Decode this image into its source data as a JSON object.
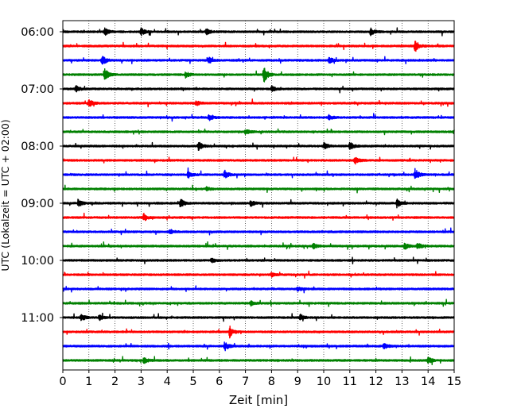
{
  "chart_data": {
    "type": "line",
    "subtype": "helicorder",
    "xlabel": "Zeit  [min]",
    "ylabel": "UTC (Lokalzeit = UTC + 02:00)",
    "xlim": [
      0,
      15
    ],
    "x_ticks": [
      "0",
      "1",
      "2",
      "3",
      "4",
      "5",
      "6",
      "7",
      "8",
      "9",
      "10",
      "11",
      "12",
      "13",
      "14",
      "15"
    ],
    "y_tick_labels": [
      "06:00",
      "07:00",
      "08:00",
      "09:00",
      "10:00",
      "11:00"
    ],
    "trace_minutes_per_line": 15,
    "start_utc": "06:00",
    "grid_x": true,
    "colors": [
      "#000000",
      "#ff0000",
      "#0000ff",
      "#008000"
    ],
    "series": [
      {
        "start": "06:00",
        "color": "#000000",
        "events": [
          {
            "x": 1.6,
            "amp": 1.2
          },
          {
            "x": 3.0,
            "amp": 1.1
          },
          {
            "x": 5.5,
            "amp": 0.8
          },
          {
            "x": 11.8,
            "amp": 1.1
          }
        ]
      },
      {
        "start": "06:15",
        "color": "#ff0000",
        "events": [
          {
            "x": 13.5,
            "amp": 1.9
          }
        ]
      },
      {
        "start": "06:30",
        "color": "#0000ff",
        "events": [
          {
            "x": 1.5,
            "amp": 1.6
          },
          {
            "x": 5.6,
            "amp": 0.9
          },
          {
            "x": 10.2,
            "amp": 1.0
          }
        ]
      },
      {
        "start": "06:45",
        "color": "#008000",
        "events": [
          {
            "x": 1.6,
            "amp": 2.1
          },
          {
            "x": 4.7,
            "amp": 1.0
          },
          {
            "x": 7.7,
            "amp": 2.6
          }
        ]
      },
      {
        "start": "07:00",
        "color": "#000000",
        "events": [
          {
            "x": 0.5,
            "amp": 0.9
          },
          {
            "x": 8.0,
            "amp": 0.9
          }
        ]
      },
      {
        "start": "07:15",
        "color": "#ff0000",
        "events": [
          {
            "x": 1.0,
            "amp": 1.1
          },
          {
            "x": 5.1,
            "amp": 0.8
          }
        ]
      },
      {
        "start": "07:30",
        "color": "#0000ff",
        "events": [
          {
            "x": 5.6,
            "amp": 0.9
          },
          {
            "x": 10.2,
            "amp": 0.7
          }
        ]
      },
      {
        "start": "07:45",
        "color": "#008000",
        "events": [
          {
            "x": 7.0,
            "amp": 0.8
          },
          {
            "x": 15.0,
            "amp": 0.7
          }
        ]
      },
      {
        "start": "08:00",
        "color": "#000000",
        "events": [
          {
            "x": 5.2,
            "amp": 1.4
          },
          {
            "x": 10.0,
            "amp": 1.0
          },
          {
            "x": 11.0,
            "amp": 1.2
          }
        ]
      },
      {
        "start": "08:15",
        "color": "#ff0000",
        "events": [
          {
            "x": 11.2,
            "amp": 1.2
          }
        ]
      },
      {
        "start": "08:30",
        "color": "#0000ff",
        "events": [
          {
            "x": 4.8,
            "amp": 1.0
          },
          {
            "x": 6.2,
            "amp": 1.3
          },
          {
            "x": 13.5,
            "amp": 1.8
          }
        ]
      },
      {
        "start": "08:45",
        "color": "#008000",
        "events": [
          {
            "x": 5.5,
            "amp": 0.6
          }
        ]
      },
      {
        "start": "09:00",
        "color": "#000000",
        "events": [
          {
            "x": 0.6,
            "amp": 1.0
          },
          {
            "x": 4.5,
            "amp": 1.5
          },
          {
            "x": 7.2,
            "amp": 0.9
          },
          {
            "x": 12.8,
            "amp": 1.3
          }
        ]
      },
      {
        "start": "09:15",
        "color": "#ff0000",
        "events": [
          {
            "x": 3.1,
            "amp": 1.2
          }
        ]
      },
      {
        "start": "09:30",
        "color": "#0000ff",
        "events": [
          {
            "x": 4.1,
            "amp": 0.8
          }
        ]
      },
      {
        "start": "09:45",
        "color": "#008000",
        "events": [
          {
            "x": 9.6,
            "amp": 0.9
          },
          {
            "x": 13.1,
            "amp": 1.1
          },
          {
            "x": 13.6,
            "amp": 1.0
          }
        ]
      },
      {
        "start": "10:00",
        "color": "#000000",
        "events": [
          {
            "x": 5.7,
            "amp": 0.7
          }
        ]
      },
      {
        "start": "10:15",
        "color": "#ff0000",
        "events": [
          {
            "x": 8.0,
            "amp": 0.6
          }
        ]
      },
      {
        "start": "10:30",
        "color": "#0000ff",
        "events": [
          {
            "x": 9.0,
            "amp": 0.6
          }
        ]
      },
      {
        "start": "10:45",
        "color": "#008000",
        "events": [
          {
            "x": 7.2,
            "amp": 0.7
          }
        ]
      },
      {
        "start": "11:00",
        "color": "#000000",
        "events": [
          {
            "x": 0.7,
            "amp": 1.2
          },
          {
            "x": 1.4,
            "amp": 0.8
          },
          {
            "x": 9.1,
            "amp": 0.9
          }
        ]
      },
      {
        "start": "11:15",
        "color": "#ff0000",
        "events": [
          {
            "x": 6.4,
            "amp": 1.8
          }
        ]
      },
      {
        "start": "11:30",
        "color": "#0000ff",
        "events": [
          {
            "x": 6.2,
            "amp": 1.5
          },
          {
            "x": 12.3,
            "amp": 0.8
          }
        ]
      },
      {
        "start": "11:45",
        "color": "#008000",
        "events": [
          {
            "x": 3.1,
            "amp": 0.9
          },
          {
            "x": 14.0,
            "amp": 0.9
          }
        ]
      }
    ]
  }
}
